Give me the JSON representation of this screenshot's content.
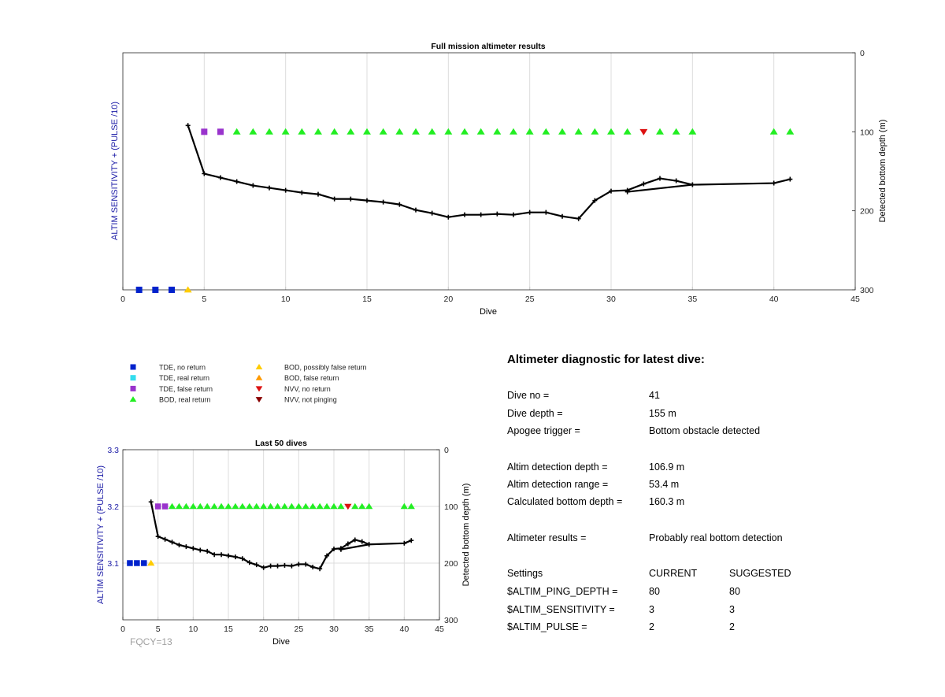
{
  "top_chart": {
    "title": "Full mission altimeter results",
    "xlabel": "Dive",
    "ylabel_left": "ALTIM SENSITIVITY + (PULSE /10)",
    "ylabel_right": "Detected bottom depth (m)",
    "x_ticks": [
      "0",
      "5",
      "10",
      "15",
      "20",
      "25",
      "30",
      "35",
      "40",
      "45"
    ],
    "y_right_ticks": [
      "0",
      "100",
      "200",
      "300"
    ]
  },
  "bottom_chart": {
    "title": "Last 50 dives",
    "xlabel": "Dive",
    "ylabel_left": "ALTIM SENSITIVITY + (PULSE /10)",
    "ylabel_right": "Detected bottom depth (m)",
    "x_ticks": [
      "0",
      "5",
      "10",
      "15",
      "20",
      "25",
      "30",
      "35",
      "40",
      "45"
    ],
    "y_left_ticks": [
      "3.3",
      "3.2",
      "3.1"
    ],
    "y_right_ticks": [
      "0",
      "100",
      "200",
      "300"
    ]
  },
  "chart_data": [
    {
      "type": "line",
      "name": "top",
      "xlim": [
        0,
        45
      ],
      "ylim_right": [
        0,
        300
      ],
      "y_right_reversed": true,
      "grid": "vertical",
      "depth_line": {
        "x": [
          4,
          5,
          6,
          7,
          8,
          9,
          10,
          11,
          12,
          13,
          14,
          15,
          16,
          17,
          18,
          19,
          20,
          21,
          22,
          23,
          24,
          25,
          26,
          27,
          28,
          29,
          30,
          31,
          32,
          33,
          34,
          35,
          31,
          35,
          40,
          41
        ],
        "y": [
          92,
          153,
          158,
          163,
          168,
          171,
          174,
          177,
          179,
          185,
          185,
          187,
          189,
          192,
          199,
          203,
          208,
          205,
          205,
          204,
          205,
          202,
          202,
          207,
          210,
          187,
          175,
          174,
          166,
          159,
          162,
          167,
          176,
          167,
          165,
          160
        ]
      },
      "markers": [
        {
          "kind": "tde_no_return",
          "x": [
            1,
            2,
            3
          ],
          "y": [
            300,
            300,
            300
          ]
        },
        {
          "kind": "bod_possibly_false",
          "x": [
            4
          ],
          "y": [
            300
          ]
        },
        {
          "kind": "tde_false_return",
          "x": [
            5,
            6
          ],
          "y": [
            100,
            100
          ]
        },
        {
          "kind": "bod_real_return",
          "x": [
            7,
            8,
            9,
            10,
            11,
            12,
            13,
            14,
            15,
            16,
            17,
            18,
            19,
            20,
            21,
            22,
            23,
            24,
            25,
            26,
            27,
            28,
            29,
            30,
            31,
            33,
            34,
            35,
            40,
            41
          ],
          "y": [
            100,
            100,
            100,
            100,
            100,
            100,
            100,
            100,
            100,
            100,
            100,
            100,
            100,
            100,
            100,
            100,
            100,
            100,
            100,
            100,
            100,
            100,
            100,
            100,
            100,
            100,
            100,
            100,
            100,
            100
          ]
        },
        {
          "kind": "nvv_no_return",
          "x": [
            32
          ],
          "y": [
            100
          ]
        }
      ]
    },
    {
      "type": "line",
      "name": "bottom",
      "xlim": [
        0,
        45
      ],
      "ylim_right": [
        0,
        300
      ],
      "y_right_reversed": true,
      "ylim_left": [
        3.0,
        3.3
      ],
      "grid": "both",
      "depth_line": {
        "x": [
          4,
          5,
          6,
          7,
          8,
          9,
          10,
          11,
          12,
          13,
          14,
          15,
          16,
          17,
          18,
          19,
          20,
          21,
          22,
          23,
          24,
          25,
          26,
          27,
          28,
          29,
          30,
          31,
          32,
          33,
          34,
          35,
          31,
          35,
          40,
          41
        ],
        "y": [
          92,
          153,
          158,
          163,
          168,
          171,
          174,
          177,
          179,
          185,
          185,
          187,
          189,
          192,
          199,
          203,
          208,
          205,
          205,
          204,
          205,
          202,
          202,
          207,
          210,
          187,
          175,
          174,
          166,
          159,
          162,
          167,
          176,
          167,
          165,
          160
        ]
      },
      "markers": [
        {
          "kind": "tde_no_return",
          "x": [
            1,
            2,
            3
          ],
          "y": [
            200,
            200,
            200
          ]
        },
        {
          "kind": "bod_possibly_false",
          "x": [
            4
          ],
          "y": [
            200
          ]
        },
        {
          "kind": "tde_false_return",
          "x": [
            5,
            6
          ],
          "y": [
            100,
            100
          ]
        },
        {
          "kind": "bod_real_return",
          "x": [
            7,
            8,
            9,
            10,
            11,
            12,
            13,
            14,
            15,
            16,
            17,
            18,
            19,
            20,
            21,
            22,
            23,
            24,
            25,
            26,
            27,
            28,
            29,
            30,
            31,
            33,
            34,
            35,
            40,
            41
          ],
          "y": [
            100,
            100,
            100,
            100,
            100,
            100,
            100,
            100,
            100,
            100,
            100,
            100,
            100,
            100,
            100,
            100,
            100,
            100,
            100,
            100,
            100,
            100,
            100,
            100,
            100,
            100,
            100,
            100,
            100,
            100
          ]
        },
        {
          "kind": "nvv_no_return",
          "x": [
            32
          ],
          "y": [
            100
          ]
        }
      ]
    }
  ],
  "legend": [
    {
      "kind": "tde_no_return",
      "label": "TDE, no return",
      "color": "#0022cc",
      "shape": "square"
    },
    {
      "kind": "tde_real_return",
      "label": "TDE, real return",
      "color": "#33ddee",
      "shape": "square"
    },
    {
      "kind": "tde_false_return",
      "label": "TDE, false return",
      "color": "#9933cc",
      "shape": "square"
    },
    {
      "kind": "bod_real_return",
      "label": "BOD, real return",
      "color": "#22ee22",
      "shape": "triangle-up"
    },
    {
      "kind": "bod_possibly_false",
      "label": "BOD, possibly false return",
      "color": "#ffcc00",
      "shape": "triangle-up"
    },
    {
      "kind": "bod_false_return",
      "label": "BOD, false return",
      "color": "#ff9900",
      "shape": "triangle-up"
    },
    {
      "kind": "nvv_no_return",
      "label": "NVV, no return",
      "color": "#dd1111",
      "shape": "triangle-down"
    },
    {
      "kind": "nvv_not_pinging",
      "label": "NVV, not pinging",
      "color": "#880000",
      "shape": "triangle-down"
    }
  ],
  "fqcy": "FQCY=13",
  "diagnostic": {
    "title": "Altimeter diagnostic for latest dive:",
    "dive_no_label": "Dive no =",
    "dive_no": "41",
    "dive_depth_label": "Dive depth =",
    "dive_depth": "155 m",
    "apogee_label": "Apogee trigger =",
    "apogee": "Bottom obstacle detected",
    "detect_depth_label": "Altim detection depth =",
    "detect_depth": "106.9 m",
    "detect_range_label": "Altim detection range =",
    "detect_range": "53.4 m",
    "calc_depth_label": "Calculated bottom depth =",
    "calc_depth": "160.3 m",
    "results_label": "Altimeter results =",
    "results": "Probably real bottom detection",
    "settings_label": "Settings",
    "current_label": "CURRENT",
    "suggested_label": "SUGGESTED",
    "ping_depth_label": "$ALTIM_PING_DEPTH =",
    "ping_depth_current": "80",
    "ping_depth_suggested": "80",
    "sensitivity_label": "$ALTIM_SENSITIVITY =",
    "sensitivity_current": "3",
    "sensitivity_suggested": "3",
    "pulse_label": "$ALTIM_PULSE =",
    "pulse_current": "2",
    "pulse_suggested": "2"
  }
}
